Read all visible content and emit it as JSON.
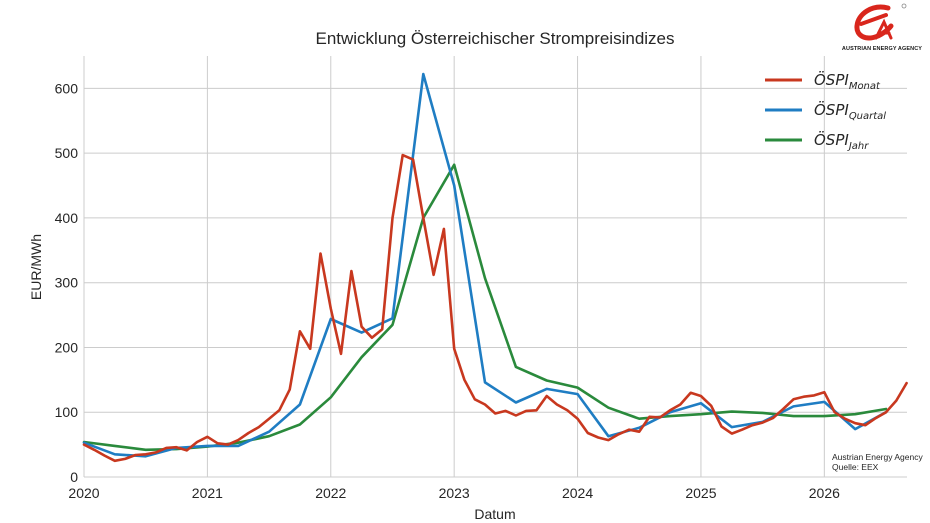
{
  "chart_data": {
    "type": "line",
    "title": "Entwicklung Österreichischer Strompreisindizes",
    "xlabel": "Datum",
    "ylabel": "EUR/MWh",
    "xlim": [
      2020.0,
      2026.67
    ],
    "ylim": [
      0,
      650
    ],
    "x_ticks": [
      2020,
      2021,
      2022,
      2023,
      2024,
      2025,
      2026
    ],
    "y_ticks": [
      0,
      100,
      200,
      300,
      400,
      500,
      600
    ],
    "grid": true,
    "legend_position": "top-right",
    "series": [
      {
        "name": "ÖSPI_Monat",
        "legend_main": "ÖSPI",
        "legend_sub": "Monat",
        "color": "#c8381f",
        "x": [
          2020.0,
          2020.083,
          2020.167,
          2020.25,
          2020.333,
          2020.417,
          2020.5,
          2020.583,
          2020.667,
          2020.75,
          2020.833,
          2020.917,
          2021.0,
          2021.083,
          2021.167,
          2021.25,
          2021.333,
          2021.417,
          2021.5,
          2021.583,
          2021.667,
          2021.75,
          2021.833,
          2021.917,
          2022.0,
          2022.083,
          2022.167,
          2022.25,
          2022.333,
          2022.417,
          2022.5,
          2022.583,
          2022.667,
          2022.75,
          2022.833,
          2022.917,
          2023.0,
          2023.083,
          2023.167,
          2023.25,
          2023.333,
          2023.417,
          2023.5,
          2023.583,
          2023.667,
          2023.75,
          2023.833,
          2023.917,
          2024.0,
          2024.083,
          2024.167,
          2024.25,
          2024.333,
          2024.417,
          2024.5,
          2024.583,
          2024.667,
          2024.75,
          2024.833,
          2024.917,
          2025.0,
          2025.083,
          2025.167,
          2025.25,
          2025.333,
          2025.417,
          2025.5,
          2025.583,
          2025.667,
          2025.75,
          2025.833,
          2025.917,
          2026.0,
          2026.083,
          2026.167,
          2026.25,
          2026.333,
          2026.417,
          2026.5,
          2026.583,
          2026.667
        ],
        "y": [
          50,
          42,
          33,
          25,
          28,
          34,
          35,
          38,
          45,
          46,
          41,
          54,
          62,
          52,
          50,
          57,
          68,
          77,
          90,
          103,
          135,
          225,
          198,
          345,
          260,
          190,
          318,
          232,
          215,
          228,
          400,
          497,
          490,
          400,
          312,
          383,
          198,
          150,
          120,
          112,
          98,
          102,
          95,
          102,
          103,
          125,
          112,
          103,
          90,
          68,
          61,
          57,
          66,
          73,
          70,
          93,
          92,
          103,
          112,
          130,
          125,
          110,
          78,
          67,
          73,
          80,
          84,
          91,
          105,
          120,
          124,
          126,
          131,
          100,
          90,
          83,
          80,
          91,
          100,
          118,
          145
        ]
      },
      {
        "name": "ÖSPI_Quartal",
        "legend_main": "ÖSPI",
        "legend_sub": "Quartal",
        "color": "#1f7dc3",
        "x": [
          2020.0,
          2020.25,
          2020.5,
          2020.75,
          2021.0,
          2021.25,
          2021.5,
          2021.75,
          2022.0,
          2022.25,
          2022.5,
          2022.75,
          2023.0,
          2023.25,
          2023.5,
          2023.75,
          2024.0,
          2024.25,
          2024.5,
          2024.75,
          2025.0,
          2025.25,
          2025.5,
          2025.75,
          2026.0,
          2026.25,
          2026.5
        ],
        "y": [
          53,
          35,
          32,
          45,
          48,
          48,
          70,
          112,
          244,
          223,
          245,
          622,
          450,
          146,
          115,
          136,
          128,
          63,
          76,
          100,
          114,
          77,
          85,
          109,
          116,
          74,
          100
        ]
      },
      {
        "name": "ÖSPI_Jahr",
        "legend_main": "ÖSPI",
        "legend_sub": "Jahr",
        "color": "#2a8a3c",
        "x": [
          2020.0,
          2020.25,
          2020.5,
          2020.75,
          2021.0,
          2021.25,
          2021.5,
          2021.75,
          2022.0,
          2022.25,
          2022.5,
          2022.75,
          2023.0,
          2023.25,
          2023.5,
          2023.75,
          2024.0,
          2024.25,
          2024.5,
          2024.75,
          2025.0,
          2025.25,
          2025.5,
          2025.75,
          2026.0,
          2026.25,
          2026.5
        ],
        "y": [
          54,
          48,
          42,
          43,
          47,
          53,
          63,
          81,
          123,
          185,
          235,
          400,
          482,
          307,
          170,
          149,
          138,
          107,
          90,
          94,
          97,
          101,
          99,
          94,
          94,
          97,
          105
        ]
      }
    ],
    "source_lines": [
      "Austrian Energy Agency",
      "Quelle: EEX"
    ]
  },
  "logo": {
    "text": "AUSTRIAN ENERGY AGENCY",
    "color": "#d9261c"
  }
}
